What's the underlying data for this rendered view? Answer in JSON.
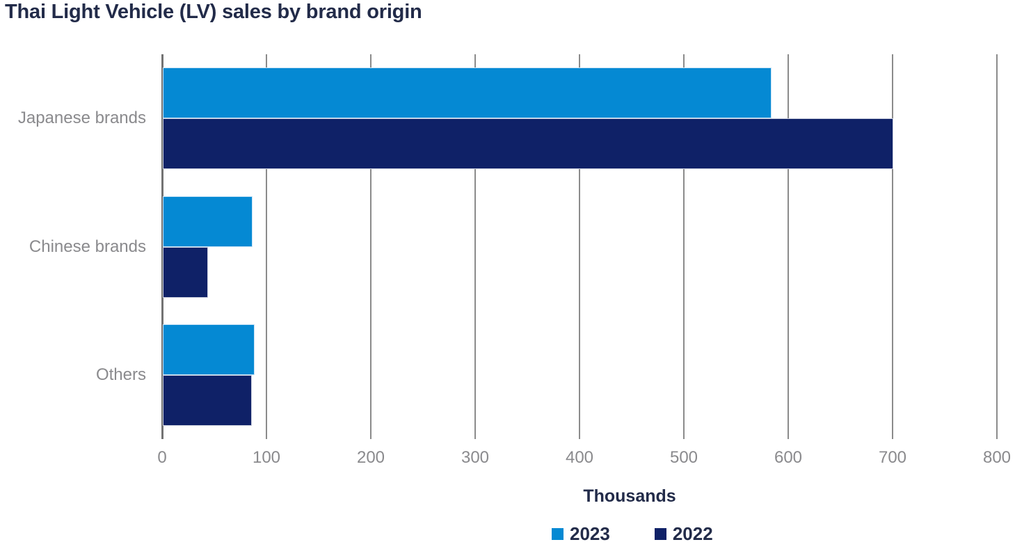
{
  "chart_data": {
    "type": "bar",
    "orientation": "horizontal",
    "title": "Thai Light Vehicle (LV) sales by brand origin",
    "xlabel": "Thousands",
    "categories": [
      "Japanese brands",
      "Chinese brands",
      "Others"
    ],
    "series": [
      {
        "name": "2023",
        "color": "#0589d3",
        "values": [
          583,
          86,
          88
        ]
      },
      {
        "name": "2022",
        "color": "#0f2167",
        "values": [
          700,
          43,
          85
        ]
      }
    ],
    "xlim": [
      0,
      800
    ],
    "xticks": [
      0,
      100,
      200,
      300,
      400,
      500,
      600,
      700,
      800
    ],
    "grid": true,
    "legend_position": "bottom"
  },
  "colors": {
    "title_text": "#222b49",
    "axis_text": "#8a8a8d",
    "gridline": "#8b8b8b",
    "axis_line": "#737373",
    "background": "#ffffff"
  }
}
